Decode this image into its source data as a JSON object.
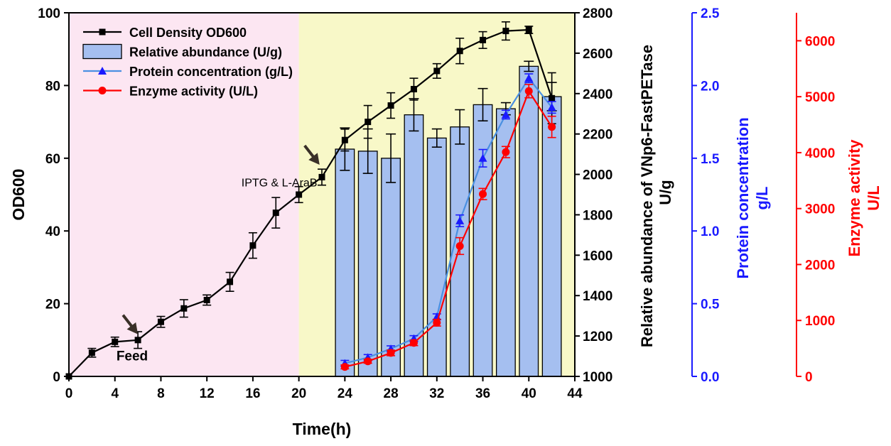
{
  "chart_data": {
    "type": "bar+line",
    "xlabel": "Time(h)",
    "xlim": [
      0,
      44
    ],
    "xticks": [
      0,
      4,
      8,
      12,
      16,
      20,
      24,
      28,
      32,
      36,
      40,
      44
    ],
    "shaded_regions": [
      {
        "x": [
          0,
          20
        ],
        "color": "#fce6f2"
      },
      {
        "x": [
          20,
          44
        ],
        "color": "#f8f8c8"
      }
    ],
    "axes": {
      "od": {
        "label": "OD600",
        "lim": [
          0,
          100
        ],
        "ticks": [
          0,
          20,
          40,
          60,
          80,
          100
        ],
        "color": "#000000"
      },
      "abundance": {
        "label_line1": "Relative abundance of VNp6-FastPETase",
        "label_line2": "U/g",
        "lim": [
          1000,
          2800
        ],
        "ticks": [
          1000,
          1200,
          1400,
          1600,
          1800,
          2000,
          2200,
          2400,
          2600,
          2800
        ],
        "color": "#000000"
      },
      "protein": {
        "label_line1": "Protein concentration",
        "label_line2": "g/L",
        "lim": [
          0,
          2.5
        ],
        "ticks": [
          "0.0",
          "0.5",
          "1.0",
          "1.5",
          "2.0",
          "2.5"
        ],
        "color": "#1a1aff"
      },
      "enzyme": {
        "label_line1": "Enzyme activity",
        "label_line2": "U/L",
        "lim": [
          0,
          6500
        ],
        "ticks": [
          0,
          1000,
          2000,
          3000,
          4000,
          5000,
          6000
        ],
        "color": "#ff0000"
      }
    },
    "series": [
      {
        "name": "Cell Density OD600",
        "axis": "od",
        "kind": "line",
        "marker": "square",
        "color": "#000000",
        "x": [
          0,
          2,
          4,
          6,
          8,
          10,
          12,
          14,
          16,
          18,
          20,
          22,
          24,
          26,
          28,
          30,
          32,
          34,
          36,
          38,
          40,
          42
        ],
        "y": [
          0,
          6.5,
          9.5,
          10,
          15,
          18.7,
          21,
          26,
          36,
          45,
          50,
          54.8,
          65,
          70,
          74.5,
          79,
          84,
          89.5,
          92.5,
          95,
          95.3,
          76.5
        ],
        "err": [
          0,
          1.2,
          1.3,
          2.3,
          1.5,
          2.4,
          1.4,
          2.6,
          3.5,
          4.2,
          2.2,
          2.2,
          3.0,
          4.5,
          3.5,
          3.0,
          2.0,
          3.5,
          2.3,
          2.5,
          1.0,
          7.0
        ]
      },
      {
        "name": "Relative abundance (U/g)",
        "axis": "abundance",
        "kind": "bar",
        "color": "#a5bff0",
        "x": [
          24,
          26,
          28,
          30,
          32,
          34,
          36,
          38,
          40,
          42
        ],
        "y": [
          2125,
          2115,
          2080,
          2295,
          2180,
          2235,
          2345,
          2325,
          2535,
          2385
        ],
        "err": [
          105,
          110,
          120,
          80,
          45,
          85,
          80,
          30,
          25,
          70
        ]
      },
      {
        "name": "Protein concentration (g/L)",
        "axis": "protein",
        "kind": "line",
        "marker": "triangle",
        "color": "#1a1aff",
        "line_color": "#4a90e2",
        "x": [
          24,
          26,
          28,
          30,
          32,
          34,
          36,
          38,
          40,
          42
        ],
        "y": [
          0.09,
          0.13,
          0.19,
          0.26,
          0.41,
          1.07,
          1.5,
          1.8,
          2.05,
          1.85
        ],
        "err": [
          0.02,
          0.02,
          0.02,
          0.02,
          0.02,
          0.04,
          0.06,
          0.03,
          0.03,
          0.04
        ]
      },
      {
        "name": "Enzyme activity (U/L)",
        "axis": "enzyme",
        "kind": "line",
        "marker": "circle",
        "color": "#ff0000",
        "x": [
          24,
          26,
          28,
          30,
          32,
          34,
          36,
          38,
          40,
          42
        ],
        "y": [
          170,
          270,
          420,
          600,
          960,
          2330,
          3260,
          4010,
          5100,
          4460
        ],
        "err": [
          35,
          35,
          50,
          50,
          60,
          150,
          100,
          100,
          120,
          190
        ]
      }
    ],
    "annotations": [
      {
        "text": "Feed",
        "x": 5.5,
        "y": 4.4,
        "arrow_to": [
          6,
          11.6
        ]
      },
      {
        "text": "IPTG & L-AraB",
        "x": 18.3,
        "y": 52.2,
        "arrow_to": [
          21.8,
          58.2
        ]
      }
    ],
    "legend_position": "top-left"
  }
}
